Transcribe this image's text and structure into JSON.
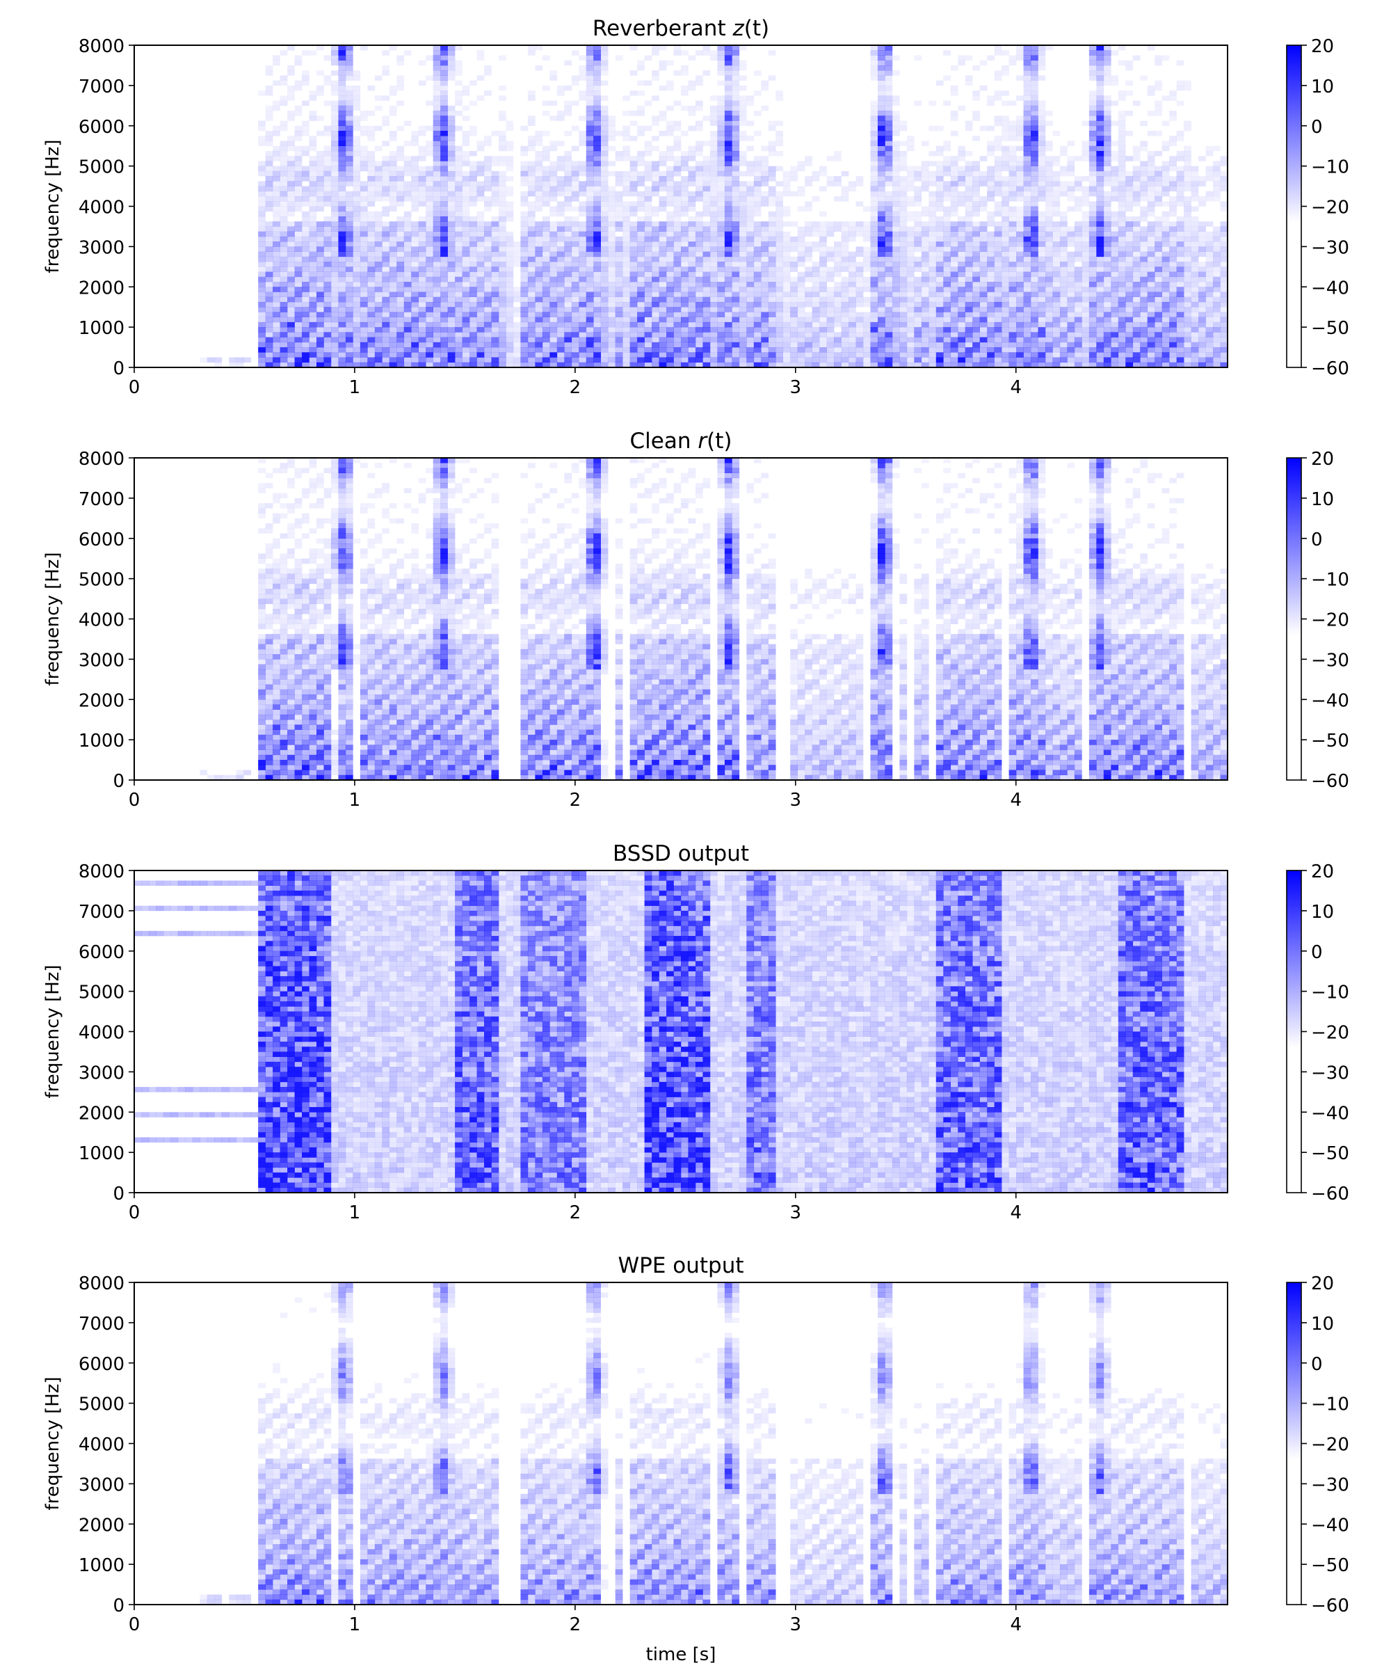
{
  "chart_data": [
    {
      "type": "heatmap",
      "title": "Reverberant z(t)",
      "title_parts": {
        "prefix": "Reverberant ",
        "var": "z",
        "suffix": "(t)"
      },
      "xlabel": "",
      "ylabel": "frequency [Hz]",
      "xlim": [
        0,
        4.96
      ],
      "ylim": [
        0,
        8000
      ],
      "xticks": [
        "0",
        "1",
        "2",
        "3",
        "4"
      ],
      "yticks": [
        "0",
        "1000",
        "2000",
        "3000",
        "4000",
        "5000",
        "6000",
        "7000",
        "8000"
      ],
      "colorbar": {
        "range": [
          -60,
          20
        ],
        "ticks": [
          "20",
          "10",
          "0",
          "−10",
          "−20",
          "−30",
          "−40",
          "−50",
          "−60"
        ]
      },
      "pattern": "reverberant",
      "color": "#0000ff"
    },
    {
      "type": "heatmap",
      "title": "Clean r(t)",
      "title_parts": {
        "prefix": "Clean ",
        "var": "r",
        "suffix": "(t)"
      },
      "xlabel": "",
      "ylabel": "frequency [Hz]",
      "xlim": [
        0,
        4.96
      ],
      "ylim": [
        0,
        8000
      ],
      "xticks": [
        "0",
        "1",
        "2",
        "3",
        "4"
      ],
      "yticks": [
        "0",
        "1000",
        "2000",
        "3000",
        "4000",
        "5000",
        "6000",
        "7000",
        "8000"
      ],
      "colorbar": {
        "range": [
          -60,
          20
        ],
        "ticks": [
          "20",
          "10",
          "0",
          "−10",
          "−20",
          "−30",
          "−40",
          "−50",
          "−60"
        ]
      },
      "pattern": "clean",
      "color": "#0000ff"
    },
    {
      "type": "heatmap",
      "title": "BSSD output",
      "title_parts": {
        "prefix": "BSSD output",
        "var": "",
        "suffix": ""
      },
      "xlabel": "",
      "ylabel": "frequency [Hz]",
      "xlim": [
        0,
        4.96
      ],
      "ylim": [
        0,
        8000
      ],
      "xticks": [
        "0",
        "1",
        "2",
        "3",
        "4"
      ],
      "yticks": [
        "0",
        "1000",
        "2000",
        "3000",
        "4000",
        "5000",
        "6000",
        "7000",
        "8000"
      ],
      "colorbar": {
        "range": [
          -60,
          20
        ],
        "ticks": [
          "20",
          "10",
          "0",
          "−10",
          "−20",
          "−30",
          "−40",
          "−50",
          "−60"
        ]
      },
      "pattern": "bssd",
      "color": "#0000ff"
    },
    {
      "type": "heatmap",
      "title": "WPE output",
      "title_parts": {
        "prefix": "WPE output",
        "var": "",
        "suffix": ""
      },
      "xlabel": "time [s]",
      "ylabel": "frequency [Hz]",
      "xlim": [
        0,
        4.96
      ],
      "ylim": [
        0,
        8000
      ],
      "xticks": [
        "0",
        "1",
        "2",
        "3",
        "4"
      ],
      "yticks": [
        "0",
        "1000",
        "2000",
        "3000",
        "4000",
        "5000",
        "6000",
        "7000",
        "8000"
      ],
      "colorbar": {
        "range": [
          -60,
          20
        ],
        "ticks": [
          "20",
          "10",
          "0",
          "−10",
          "−20",
          "−30",
          "−40",
          "−50",
          "−60"
        ]
      },
      "pattern": "wpe",
      "color": "#0000ff"
    }
  ]
}
